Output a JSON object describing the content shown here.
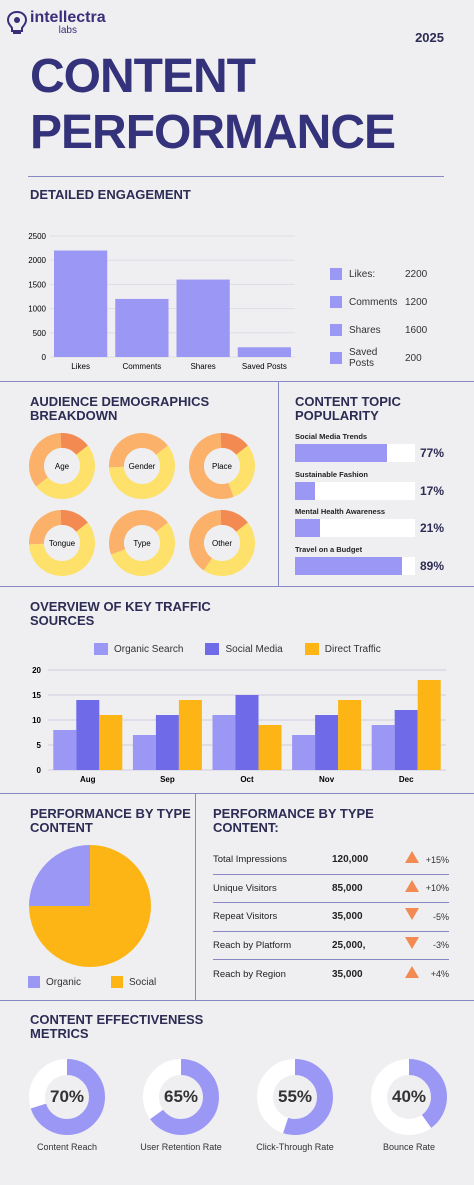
{
  "brand": {
    "name": "intellectra",
    "sub": "labs"
  },
  "year": "2025",
  "title_line1": "CONTENT",
  "title_line2": "PERFORMANCE",
  "colors": {
    "accent": "#9a97f5",
    "dark": "#6f6ae8",
    "yellow": "#fdb515",
    "light_yellow": "#fde16a",
    "orange": "#f28a52",
    "peach": "#fbb169"
  },
  "engagement": {
    "title": "DETAILED ENGAGEMENT",
    "chart_data": {
      "type": "bar",
      "categories": [
        "Likes",
        "Comments",
        "Shares",
        "Saved Posts"
      ],
      "values": [
        2200,
        1200,
        1600,
        200
      ],
      "ylim": [
        0,
        2500
      ],
      "yticks": [
        0,
        500,
        1000,
        1500,
        2000,
        2500
      ],
      "grid": true
    },
    "legend": [
      {
        "label": "Likes:",
        "value": "2200"
      },
      {
        "label": "Comments",
        "value": "1200"
      },
      {
        "label": "Shares",
        "value": "1600"
      },
      {
        "label": "Saved Posts",
        "value": "200"
      }
    ]
  },
  "demographics": {
    "title_line1": "AUDIENCE DEMOGRAPHICS",
    "title_line2": "BREAKDOWN",
    "donuts": [
      {
        "label": "Age",
        "segments": [
          0.5,
          0.35,
          0.15
        ]
      },
      {
        "label": "Gender",
        "segments": [
          0.6,
          0.4,
          0.0
        ]
      },
      {
        "label": "Place",
        "segments": [
          0.3,
          0.55,
          0.15
        ]
      },
      {
        "label": "Tongue",
        "segments": [
          0.6,
          0.25,
          0.15
        ]
      },
      {
        "label": "Type",
        "segments": [
          0.55,
          0.45,
          0.0
        ]
      },
      {
        "label": "Other",
        "segments": [
          0.45,
          0.4,
          0.15
        ]
      }
    ]
  },
  "topics": {
    "title_line1": "CONTENT TOPIC",
    "title_line2": "POPULARITY",
    "items": [
      {
        "label": "Social Media Trends",
        "pct": "77%",
        "value": 77
      },
      {
        "label": "Sustainable Fashion",
        "pct": "17%",
        "value": 17
      },
      {
        "label": "Mental Health Awareness",
        "pct": "21%",
        "value": 21
      },
      {
        "label": "Travel on a Budget",
        "pct": "89%",
        "value": 89
      }
    ]
  },
  "traffic": {
    "title_line1": "OVERVIEW OF KEY TRAFFIC",
    "title_line2": "SOURCES",
    "chart_data": {
      "type": "bar",
      "categories": [
        "Aug",
        "Sep",
        "Oct",
        "Nov",
        "Dec"
      ],
      "series": [
        {
          "name": "Organic Search",
          "values": [
            8,
            7,
            11,
            7,
            9
          ]
        },
        {
          "name": "Social Media",
          "values": [
            14,
            11,
            15,
            11,
            12
          ]
        },
        {
          "name": "Direct Traffic",
          "values": [
            11,
            14,
            9,
            14,
            18
          ]
        }
      ],
      "ylim": [
        0,
        20
      ],
      "yticks": [
        0,
        5,
        10,
        15,
        20
      ],
      "grid": true,
      "legend": "top"
    }
  },
  "type_pie": {
    "title_line1": "PERFORMANCE BY TYPE",
    "title_line2": "CONTENT",
    "chart_data": {
      "type": "pie",
      "categories": [
        "Organic",
        "Social"
      ],
      "values": [
        25,
        75
      ],
      "legend": "bottom"
    }
  },
  "type_table": {
    "title_line1": "PERFORMANCE BY TYPE",
    "title_line2": "CONTENT:",
    "rows": [
      {
        "label": "Total Impressions",
        "value": "120,000",
        "change": "+15%",
        "dir": "up"
      },
      {
        "label": "Unique Visitors",
        "value": "85,000",
        "change": "+10%",
        "dir": "up"
      },
      {
        "label": "Repeat Visitors",
        "value": "35,000",
        "change": "-5%",
        "dir": "down"
      },
      {
        "label": "Reach by Platform",
        "value": "25,000,",
        "change": "-3%",
        "dir": "down"
      },
      {
        "label": "Reach by Region",
        "value": "35,000",
        "change": "+4%",
        "dir": "up"
      }
    ]
  },
  "effectiveness": {
    "title_line1": "CONTENT EFFECTIVENESS",
    "title_line2": "METRICS",
    "metrics": [
      {
        "label": "Content Reach",
        "pct": "70%",
        "value": 70
      },
      {
        "label": "User Retention Rate",
        "pct": "65%",
        "value": 65
      },
      {
        "label": "Click-Through Rate",
        "pct": "55%",
        "value": 55
      },
      {
        "label": "Bounce Rate",
        "pct": "40%",
        "value": 40
      }
    ]
  }
}
